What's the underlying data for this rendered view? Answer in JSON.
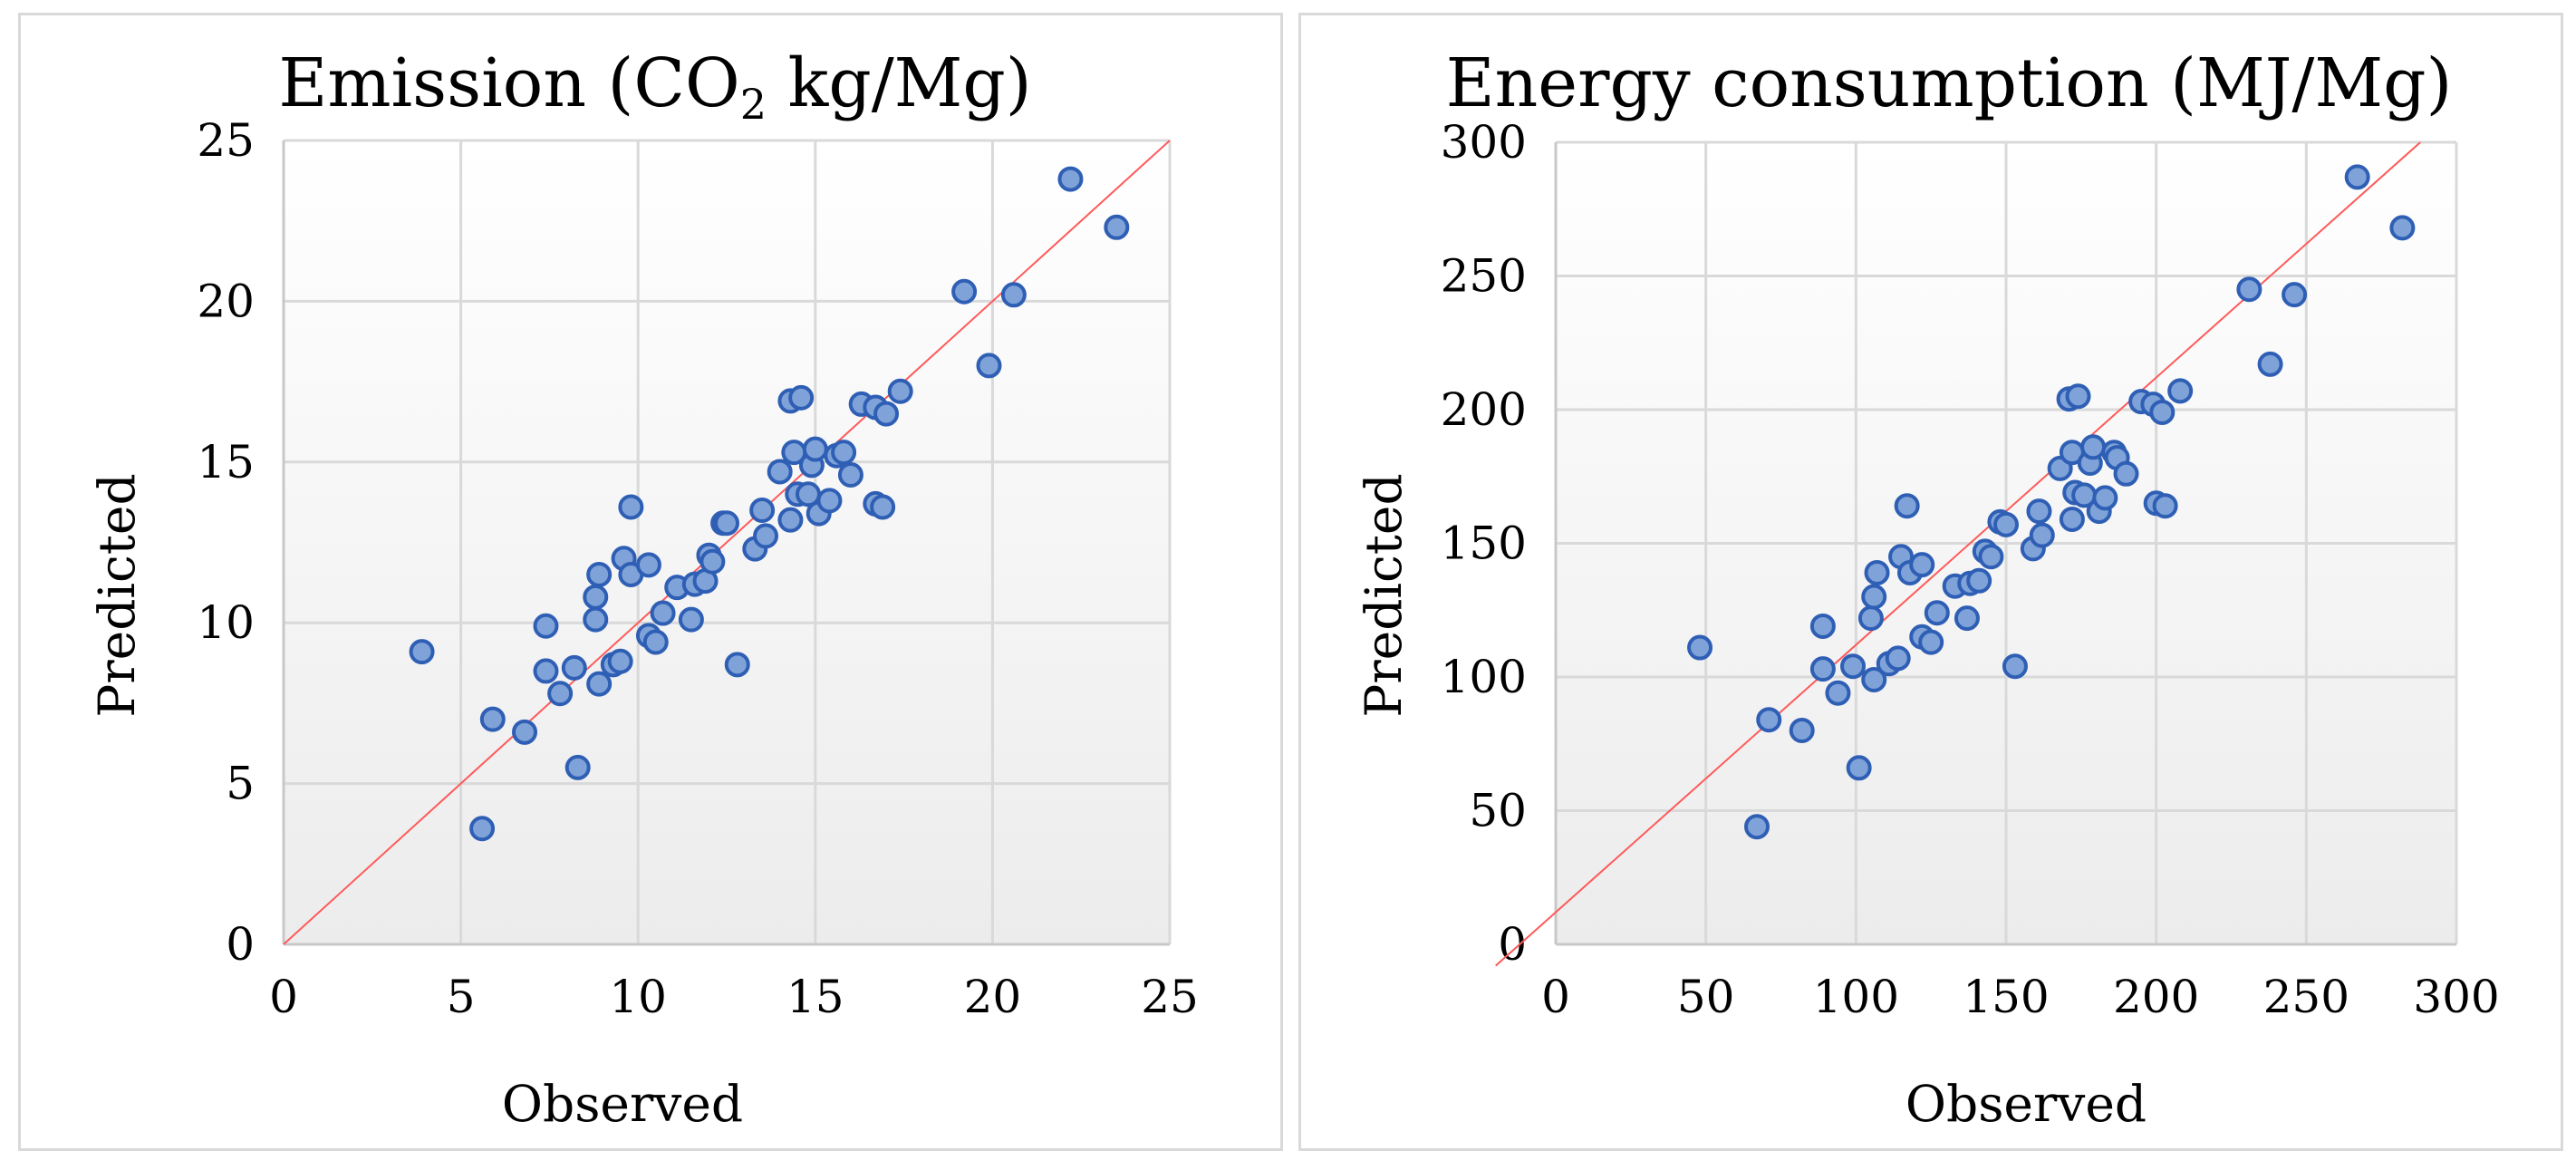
{
  "chart_data": [
    {
      "type": "scatter",
      "title_main": "Emission (CO",
      "title_sub": "2",
      "title_rest": " kg/Mg)",
      "xlabel": "Observed",
      "ylabel": "Predicted",
      "xlim": [
        0,
        25
      ],
      "ylim": [
        0,
        25
      ],
      "xticks": [
        "0",
        "5",
        "10",
        "15",
        "20",
        "25"
      ],
      "yticks": [
        "0",
        "5",
        "10",
        "15",
        "20",
        "25"
      ],
      "grid": true,
      "reference_line": "y = x",
      "colors": {
        "marker_fill": "#7fa3d8",
        "marker_edge": "#2f5fb5",
        "line": "#ff5a5a"
      },
      "points": [
        [
          3.9,
          9.1
        ],
        [
          5.6,
          3.6
        ],
        [
          5.9,
          7.0
        ],
        [
          6.8,
          6.6
        ],
        [
          7.4,
          9.9
        ],
        [
          7.4,
          8.5
        ],
        [
          7.8,
          7.8
        ],
        [
          8.2,
          8.6
        ],
        [
          8.3,
          5.5
        ],
        [
          8.8,
          10.1
        ],
        [
          8.8,
          10.8
        ],
        [
          8.9,
          11.5
        ],
        [
          8.9,
          8.1
        ],
        [
          9.3,
          8.7
        ],
        [
          9.5,
          8.8
        ],
        [
          9.6,
          12.0
        ],
        [
          9.8,
          11.5
        ],
        [
          9.8,
          13.6
        ],
        [
          10.3,
          11.8
        ],
        [
          10.3,
          9.6
        ],
        [
          10.5,
          9.4
        ],
        [
          10.7,
          10.3
        ],
        [
          11.1,
          11.1
        ],
        [
          11.5,
          10.1
        ],
        [
          11.6,
          11.2
        ],
        [
          11.9,
          11.3
        ],
        [
          12.0,
          12.1
        ],
        [
          12.1,
          11.9
        ],
        [
          12.4,
          13.1
        ],
        [
          12.5,
          13.1
        ],
        [
          12.8,
          8.7
        ],
        [
          13.3,
          12.3
        ],
        [
          13.5,
          13.5
        ],
        [
          13.6,
          12.7
        ],
        [
          14.0,
          14.7
        ],
        [
          14.3,
          16.9
        ],
        [
          14.3,
          13.2
        ],
        [
          14.4,
          15.3
        ],
        [
          14.5,
          14.0
        ],
        [
          14.6,
          17.0
        ],
        [
          14.8,
          14.0
        ],
        [
          14.9,
          14.9
        ],
        [
          15.0,
          15.4
        ],
        [
          15.1,
          13.4
        ],
        [
          15.4,
          13.8
        ],
        [
          15.6,
          15.2
        ],
        [
          15.8,
          15.3
        ],
        [
          16.0,
          14.6
        ],
        [
          16.3,
          16.8
        ],
        [
          16.7,
          16.7
        ],
        [
          16.7,
          13.7
        ],
        [
          16.9,
          13.6
        ],
        [
          17.0,
          16.5
        ],
        [
          17.4,
          17.2
        ],
        [
          19.2,
          20.3
        ],
        [
          19.9,
          18.0
        ],
        [
          20.6,
          20.2
        ],
        [
          22.2,
          23.8
        ],
        [
          23.5,
          22.3
        ]
      ]
    },
    {
      "type": "scatter",
      "title_main": "Energy consumption (MJ/Mg)",
      "title_sub": "",
      "title_rest": "",
      "xlabel": "Observed",
      "ylabel": "Predicted",
      "xlim": [
        0,
        300
      ],
      "ylim": [
        0,
        300
      ],
      "xticks": [
        "0",
        "50",
        "100",
        "150",
        "200",
        "250",
        "300"
      ],
      "yticks": [
        "0",
        "50",
        "100",
        "150",
        "200",
        "250",
        "300"
      ],
      "grid": true,
      "reference_line": "y = x",
      "colors": {
        "marker_fill": "#7fa3d8",
        "marker_edge": "#2f5fb5",
        "line": "#ff5a5a"
      },
      "points": [
        [
          48,
          111
        ],
        [
          67,
          44
        ],
        [
          71,
          84
        ],
        [
          82,
          80
        ],
        [
          89,
          103
        ],
        [
          89,
          119
        ],
        [
          94,
          94
        ],
        [
          99,
          104
        ],
        [
          101,
          66
        ],
        [
          105,
          122
        ],
        [
          106,
          130
        ],
        [
          106,
          99
        ],
        [
          107,
          139
        ],
        [
          111,
          105
        ],
        [
          114,
          107
        ],
        [
          115,
          145
        ],
        [
          117,
          164
        ],
        [
          118,
          139
        ],
        [
          122,
          115
        ],
        [
          122,
          142
        ],
        [
          125,
          113
        ],
        [
          127,
          124
        ],
        [
          133,
          134
        ],
        [
          137,
          122
        ],
        [
          138,
          135
        ],
        [
          141,
          136
        ],
        [
          143,
          147
        ],
        [
          145,
          145
        ],
        [
          148,
          158
        ],
        [
          150,
          157
        ],
        [
          153,
          104
        ],
        [
          159,
          148
        ],
        [
          161,
          162
        ],
        [
          162,
          153
        ],
        [
          168,
          178
        ],
        [
          171,
          204
        ],
        [
          172,
          184
        ],
        [
          172,
          159
        ],
        [
          173,
          169
        ],
        [
          174,
          205
        ],
        [
          176,
          168
        ],
        [
          178,
          180
        ],
        [
          179,
          186
        ],
        [
          181,
          162
        ],
        [
          183,
          167
        ],
        [
          186,
          184
        ],
        [
          187,
          182
        ],
        [
          190,
          176
        ],
        [
          195,
          203
        ],
        [
          199,
          202
        ],
        [
          200,
          165
        ],
        [
          202,
          199
        ],
        [
          203,
          164
        ],
        [
          208,
          207
        ],
        [
          231,
          245
        ],
        [
          238,
          217
        ],
        [
          246,
          243
        ],
        [
          267,
          287
        ],
        [
          282,
          268
        ]
      ]
    }
  ]
}
